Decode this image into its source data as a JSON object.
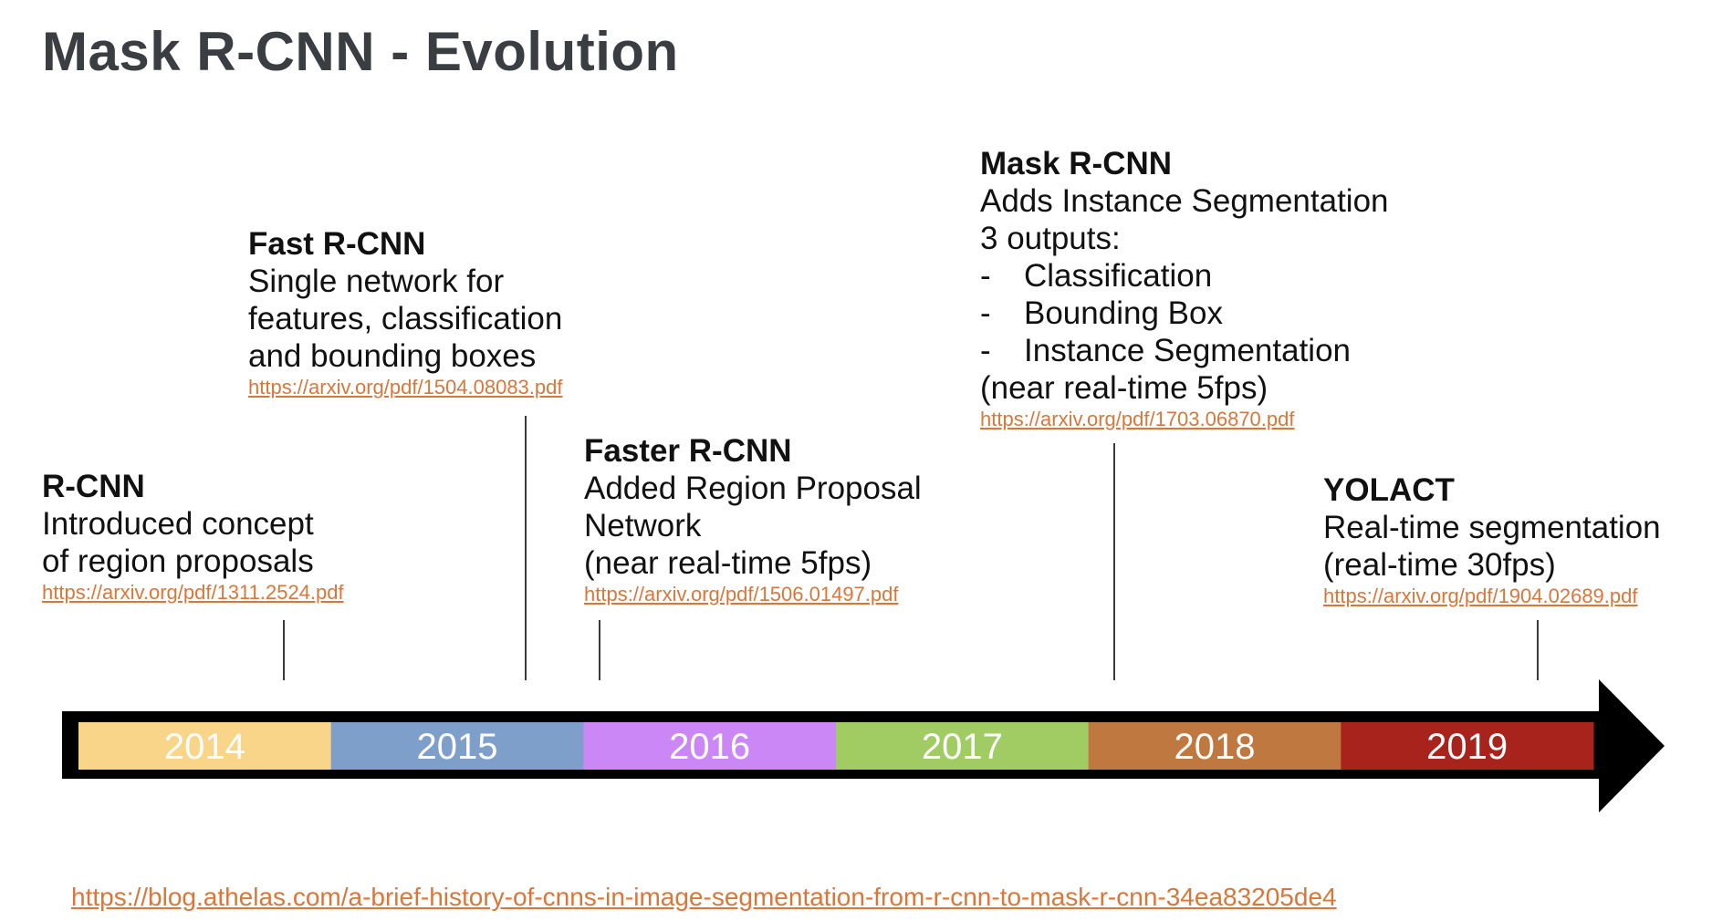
{
  "title": "Mask R-CNN - Evolution",
  "entries": [
    {
      "name": "R-CNN",
      "lines": [
        "Introduced concept",
        "of region proposals"
      ],
      "link": "https://arxiv.org/pdf/1311.2524.pdf"
    },
    {
      "name": "Fast R-CNN",
      "lines": [
        "Single network for",
        "features, classification",
        "and bounding boxes"
      ],
      "link": "https://arxiv.org/pdf/1504.08083.pdf"
    },
    {
      "name": "Faster R-CNN",
      "lines": [
        "Added Region Proposal",
        "Network",
        "(near real-time 5fps)"
      ],
      "link": "https://arxiv.org/pdf/1506.01497.pdf"
    },
    {
      "name": "Mask R-CNN",
      "lines": [
        "Adds Instance Segmentation",
        "3 outputs:"
      ],
      "bullets": [
        "Classification",
        "Bounding Box",
        "Instance Segmentation"
      ],
      "bullet_marker": "-",
      "after": "(near real-time 5fps)",
      "link": "https://arxiv.org/pdf/1703.06870.pdf"
    },
    {
      "name": "YOLACT",
      "lines": [
        "Real-time segmentation",
        "(real-time 30fps)"
      ],
      "link": "https://arxiv.org/pdf/1904.02689.pdf"
    }
  ],
  "timeline": {
    "years": [
      {
        "label": "2014",
        "color": "#f8d588"
      },
      {
        "label": "2015",
        "color": "#7f9fcb"
      },
      {
        "label": "2016",
        "color": "#cb87f6"
      },
      {
        "label": "2017",
        "color": "#a1cc64"
      },
      {
        "label": "2018",
        "color": "#c07841"
      },
      {
        "label": "2019",
        "color": "#a7231c"
      }
    ],
    "arrow_color": "#000000"
  },
  "footer_link": "https://blog.athelas.com/a-brief-history-of-cnns-in-image-segmentation-from-r-cnn-to-mask-r-cnn-34ea83205de4"
}
